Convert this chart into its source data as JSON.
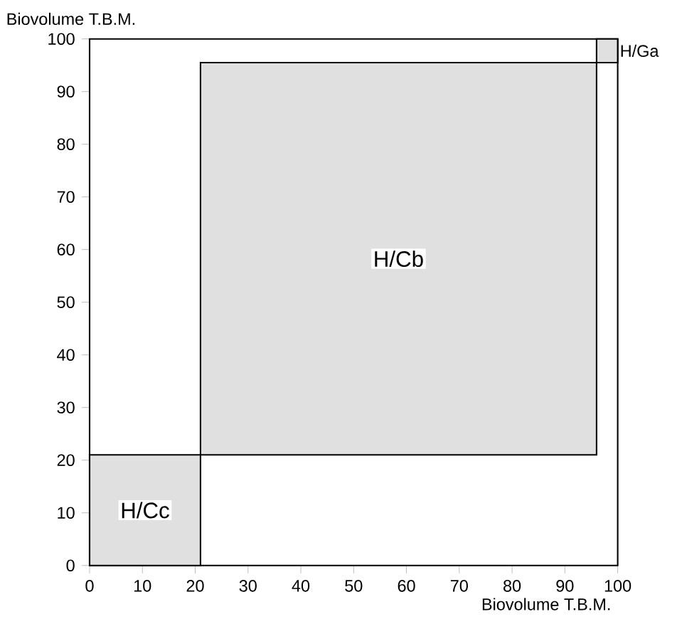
{
  "chart_data": {
    "type": "area",
    "xlabel": "Biovolume T.B.M.",
    "ylabel": "Biovolume T.B.M.",
    "xlim": [
      0,
      100
    ],
    "ylim": [
      0,
      100
    ],
    "xticks": [
      0,
      10,
      20,
      30,
      40,
      50,
      60,
      70,
      80,
      90,
      100
    ],
    "yticks": [
      0,
      10,
      20,
      30,
      40,
      50,
      60,
      70,
      80,
      90,
      100
    ],
    "series": [
      {
        "name": "H/Cc",
        "color": "#000000",
        "x": [
          0,
          21,
          21,
          0
        ],
        "values": [
          0,
          0,
          21,
          21
        ]
      },
      {
        "name": "H/Cb",
        "color": "#000000",
        "x": [
          21,
          96,
          96,
          21
        ],
        "values": [
          21,
          21,
          95.5,
          95.5
        ]
      },
      {
        "name": "H/Ga",
        "color": "#000000",
        "x": [
          96,
          100,
          100,
          96
        ],
        "values": [
          95.5,
          95.5,
          100,
          100
        ]
      }
    ]
  }
}
